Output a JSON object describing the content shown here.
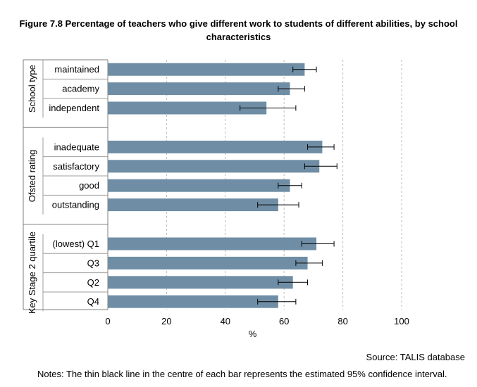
{
  "title": "Figure 7.8 Percentage of teachers who give different work to students of different abilities, by school characteristics",
  "chart_data": {
    "type": "bar",
    "orientation": "horizontal",
    "title": "Figure 7.8 Percentage of teachers who give different work to students of different abilities, by school characteristics",
    "xlabel": "%",
    "ylabel": "",
    "xlim": [
      0,
      100
    ],
    "xticks": [
      0,
      20,
      40,
      60,
      80,
      100
    ],
    "grid": "vertical-dashed",
    "bar_color": "#6f8ea5",
    "groups": [
      {
        "name": "School type",
        "categories": [
          "maintained",
          "academy",
          "independent"
        ],
        "values": [
          67,
          62,
          54
        ],
        "ci_low": [
          63,
          58,
          45
        ],
        "ci_high": [
          71,
          67,
          64
        ]
      },
      {
        "name": "Ofsted rating",
        "categories": [
          "inadequate",
          "satisfactory",
          "good",
          "outstanding"
        ],
        "values": [
          73,
          72,
          62,
          58
        ],
        "ci_low": [
          68,
          67,
          58,
          51
        ],
        "ci_high": [
          77,
          78,
          66,
          65
        ]
      },
      {
        "name": "Key Stage 2 quartile",
        "categories": [
          "(lowest) Q1",
          "Q3",
          "Q2",
          "Q4"
        ],
        "values": [
          71,
          68,
          63,
          58
        ],
        "ci_low": [
          66,
          64,
          58,
          51
        ],
        "ci_high": [
          77,
          73,
          68,
          64
        ]
      }
    ]
  },
  "source": "Source: TALIS database",
  "notes": "Notes: The thin black line in the centre of each bar represents the estimated 95% confidence interval."
}
